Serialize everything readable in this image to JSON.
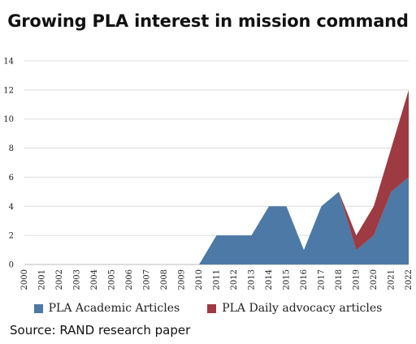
{
  "title": "Growing PLA interest in mission command",
  "source": "Source: RAND research paper",
  "chart_data": {
    "type": "area",
    "stacked": true,
    "categories": [
      "2000",
      "2001",
      "2002",
      "2003",
      "2004",
      "2005",
      "2006",
      "2007",
      "2008",
      "2009",
      "2010",
      "2011",
      "2012",
      "2013",
      "2014",
      "2015",
      "2016",
      "2017",
      "2018",
      "2019",
      "2020",
      "2021",
      "2022"
    ],
    "series": [
      {
        "name": "PLA Academic Articles",
        "color": "#4d79a6",
        "values": [
          0,
          0,
          0,
          0,
          0,
          0,
          0,
          0,
          0,
          0,
          0,
          2,
          2,
          2,
          4,
          4,
          1,
          4,
          5,
          1,
          2,
          5,
          6
        ]
      },
      {
        "name": "PLA Daily advocacy articles",
        "color": "#9e3a42",
        "values": [
          0,
          0,
          0,
          0,
          0,
          0,
          0,
          0,
          0,
          0,
          0,
          0,
          0,
          0,
          0,
          0,
          0,
          0,
          0,
          1,
          2,
          3,
          6
        ]
      }
    ],
    "ylim": [
      0,
      14
    ],
    "yticks": [
      "0",
      "2",
      "4",
      "6",
      "8",
      "10",
      "12",
      "14"
    ],
    "grid": "horizontal",
    "legend_position": "bottom"
  }
}
